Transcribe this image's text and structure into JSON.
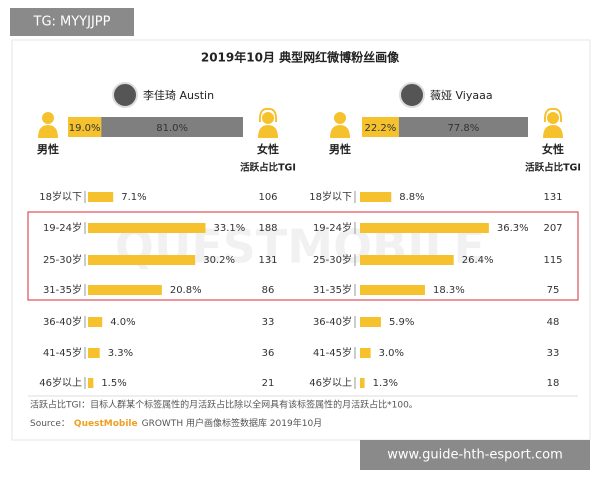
{
  "overlay": {
    "tag": "TG: MYYJJPP",
    "url": "www.guide-hth-esport.com"
  },
  "title": "2019年10月 典型网红微博粉丝画像",
  "watermark": "QUESTMOBILE",
  "chart_data": [
    {
      "type": "bar",
      "name": "李佳琦 Austin",
      "color": "#f5c22e",
      "gender": {
        "male_label": "男性",
        "female_label": "女性",
        "values": [
          19.0,
          81.0
        ],
        "value_labels": [
          "19.0%",
          "81.0%"
        ],
        "colors": [
          "#f5c22e",
          "#7f7f7f"
        ]
      },
      "tgi_label": "活跃占比TGI",
      "categories": [
        "18岁以下",
        "19-24岁",
        "25-30岁",
        "31-35岁",
        "36-40岁",
        "41-45岁",
        "46岁以上"
      ],
      "values": [
        7.1,
        33.1,
        30.2,
        20.8,
        4.0,
        3.3,
        1.5
      ],
      "value_labels": [
        "7.1%",
        "33.1%",
        "30.2%",
        "20.8%",
        "4.0%",
        "3.3%",
        "1.5%"
      ],
      "tgi": [
        106,
        188,
        131,
        86,
        33,
        36,
        21
      ]
    },
    {
      "type": "bar",
      "name": "薇娅 Viyaaa",
      "color": "#f5c22e",
      "gender": {
        "male_label": "男性",
        "female_label": "女性",
        "values": [
          22.2,
          77.8
        ],
        "value_labels": [
          "22.2%",
          "77.8%"
        ],
        "colors": [
          "#f5c22e",
          "#7f7f7f"
        ]
      },
      "tgi_label": "活跃占比TGI",
      "categories": [
        "18岁以下",
        "19-24岁",
        "25-30岁",
        "31-35岁",
        "36-40岁",
        "41-45岁",
        "46岁以上"
      ],
      "values": [
        8.8,
        36.3,
        26.4,
        18.3,
        5.9,
        3.0,
        1.3
      ],
      "value_labels": [
        "8.8%",
        "36.3%",
        "26.4%",
        "18.3%",
        "5.9%",
        "3.0%",
        "1.3%"
      ],
      "tgi": [
        131,
        207,
        115,
        75,
        48,
        33,
        18
      ]
    }
  ],
  "note": "活跃占比TGI：目标人群某个标签属性的月活跃占比除以全网具有该标签属性的月活跃占比*100。",
  "source": {
    "prefix": "Source：",
    "brand": "QuestMobile",
    "text": "GROWTH 用户画像标签数据库 2019年10月"
  }
}
